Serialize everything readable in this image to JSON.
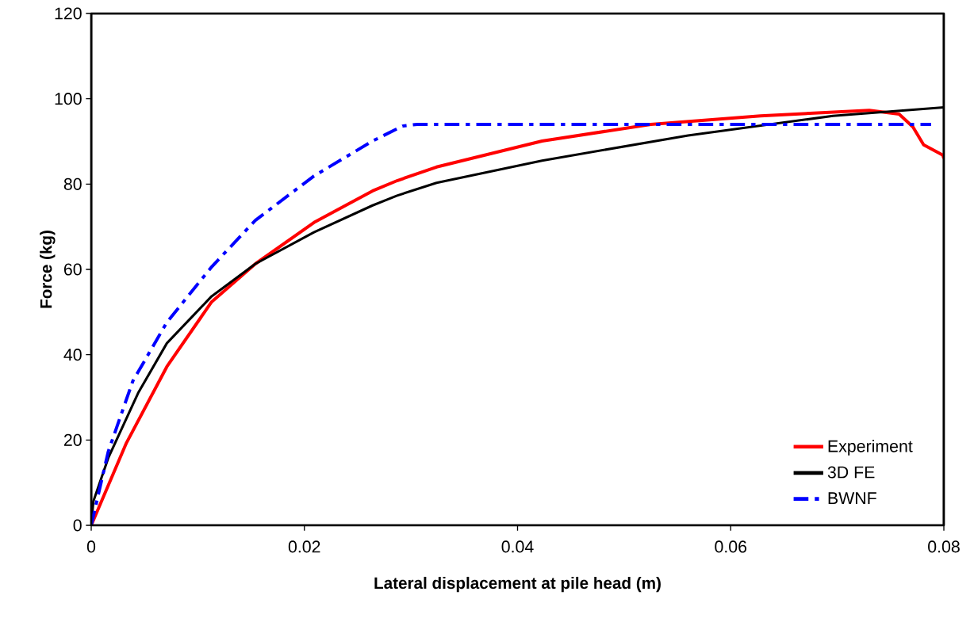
{
  "chart_data": {
    "type": "line",
    "xlabel": "Lateral displacement at pile head (m)",
    "ylabel": "Force (kg)",
    "xlim": [
      0,
      0.08
    ],
    "ylim": [
      0,
      120
    ],
    "xticks": [
      0,
      0.02,
      0.04,
      0.06,
      0.08
    ],
    "yticks": [
      0,
      20,
      40,
      60,
      80,
      100,
      120
    ],
    "grid": false,
    "legend": "bottom right",
    "series": [
      {
        "name": "Experiment",
        "color": "#ff0000",
        "line_style": "solid",
        "x": [
          0,
          0.0033,
          0.0071,
          0.0113,
          0.0154,
          0.0209,
          0.0264,
          0.0287,
          0.0324,
          0.0423,
          0.0525,
          0.0628,
          0.073,
          0.0758,
          0.0771,
          0.0781,
          0.0799,
          0.08
        ],
        "values": [
          0,
          19.3,
          37.2,
          52.4,
          61.3,
          71,
          78.4,
          80.8,
          84,
          90.1,
          94,
          96,
          97.3,
          96.4,
          93.4,
          89.2,
          86.8,
          86
        ]
      },
      {
        "name": "3D FE",
        "color": "#000000",
        "line_style": "solid",
        "x": [
          0,
          0.0002,
          0.0016,
          0.0044,
          0.0071,
          0.0113,
          0.0154,
          0.0209,
          0.0264,
          0.0287,
          0.0324,
          0.0423,
          0.056,
          0.0696,
          0.08
        ],
        "values": [
          0,
          5.6,
          15.8,
          31,
          42.7,
          53.7,
          61.3,
          68.7,
          75,
          77.3,
          80.3,
          85.5,
          91.4,
          96,
          98
        ]
      },
      {
        "name": "BWNF",
        "color": "#0000ff",
        "line_style": "dashed",
        "x": [
          0,
          0.0016,
          0.0039,
          0.0071,
          0.0113,
          0.0154,
          0.0209,
          0.0264,
          0.0292,
          0.0306,
          0.0788
        ],
        "values": [
          0,
          17.3,
          33.8,
          47.6,
          60.6,
          71.5,
          81.9,
          90.1,
          93.6,
          94,
          94
        ]
      }
    ]
  }
}
